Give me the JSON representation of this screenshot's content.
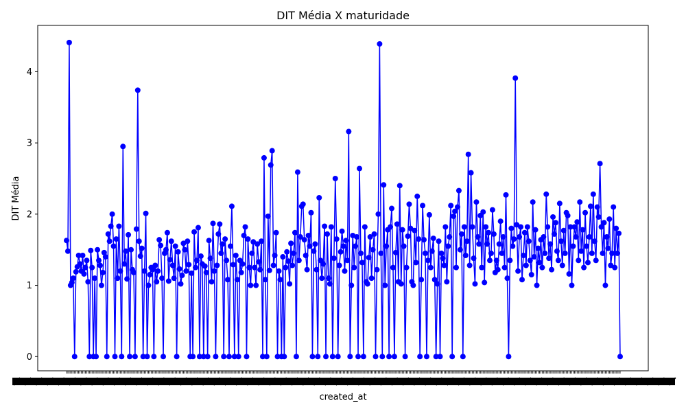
{
  "chart_data": {
    "type": "line",
    "title": "DIT Média X maturidade",
    "xlabel": "created_at",
    "ylabel": "DIT Média",
    "ylim": [
      -0.2,
      4.65
    ],
    "yticks": [
      0,
      1,
      2,
      3,
      4
    ],
    "grid": false,
    "legend": "none",
    "x_tick_labels_note": "",
    "series": [
      {
        "color": "#0000ff",
        "marker": "circle",
        "values": [
          1.63,
          1.48,
          4.41,
          1.0,
          1.04,
          1.1,
          0.0,
          1.19,
          1.26,
          1.42,
          1.3,
          1.2,
          1.42,
          1.16,
          1.25,
          1.35,
          1.05,
          0.0,
          1.49,
          1.25,
          0.0,
          1.1,
          0.0,
          1.5,
          1.35,
          1.28,
          1.0,
          1.18,
          1.46,
          1.4,
          0.0,
          1.72,
          1.62,
          1.83,
          2.0,
          1.55,
          0.0,
          1.65,
          1.1,
          1.83,
          1.2,
          0.0,
          2.95,
          1.3,
          1.48,
          1.09,
          1.71,
          0.0,
          1.5,
          1.22,
          1.18,
          0.0,
          1.79,
          3.74,
          1.62,
          1.41,
          1.52,
          0.0,
          1.2,
          2.01,
          0.0,
          1.0,
          1.15,
          1.25,
          1.22,
          0.0,
          1.28,
          1.05,
          1.2,
          1.64,
          1.56,
          1.1,
          0.0,
          1.45,
          1.5,
          1.74,
          1.06,
          1.36,
          1.62,
          1.28,
          1.1,
          1.55,
          0.0,
          1.47,
          1.23,
          1.02,
          1.14,
          1.59,
          1.5,
          1.2,
          1.62,
          1.29,
          0.0,
          1.17,
          0.0,
          1.75,
          1.25,
          1.35,
          1.81,
          0.0,
          1.41,
          1.3,
          0.0,
          1.27,
          1.18,
          0.0,
          1.63,
          1.38,
          1.05,
          1.87,
          1.2,
          0.0,
          1.28,
          1.72,
          1.86,
          1.45,
          1.58,
          0.0,
          1.65,
          1.35,
          1.08,
          0.0,
          1.55,
          2.11,
          1.29,
          0.0,
          1.42,
          1.08,
          0.0,
          1.35,
          1.18,
          1.3,
          1.7,
          1.82,
          0.0,
          1.65,
          1.25,
          1.0,
          1.45,
          1.61,
          1.25,
          1.0,
          1.58,
          1.33,
          1.22,
          1.62,
          0.0,
          2.79,
          1.08,
          0.0,
          1.97,
          1.21,
          2.69,
          2.89,
          1.28,
          1.42,
          1.74,
          0.0,
          1.2,
          1.08,
          0.0,
          1.4,
          0.0,
          1.25,
          1.47,
          1.34,
          1.02,
          1.59,
          1.28,
          1.45,
          1.74,
          0.0,
          2.59,
          1.35,
          1.68,
          2.11,
          2.14,
          1.64,
          1.42,
          1.22,
          1.7,
          1.55,
          2.02,
          0.0,
          1.48,
          1.58,
          1.22,
          0.0,
          2.23,
          1.35,
          1.1,
          1.3,
          1.83,
          0.0,
          1.72,
          1.1,
          1.02,
          1.82,
          0.0,
          1.38,
          2.5,
          1.65,
          0.0,
          1.28,
          1.47,
          1.76,
          1.55,
          1.2,
          1.63,
          1.35,
          3.16,
          0.0,
          1.0,
          1.7,
          1.25,
          1.55,
          1.68,
          0.0,
          2.64,
          1.45,
          1.32,
          0.0,
          1.82,
          1.05,
          1.02,
          1.39,
          1.68,
          1.1,
          1.5,
          1.72,
          0.0,
          1.22,
          2.0,
          4.39,
          1.45,
          0.0,
          2.41,
          1.0,
          1.55,
          1.78,
          0.0,
          1.82,
          2.08,
          1.25,
          0.0,
          1.46,
          1.86,
          1.05,
          2.4,
          1.02,
          1.78,
          1.55,
          0.0,
          1.25,
          1.69,
          2.14,
          1.8,
          1.05,
          1.0,
          1.77,
          1.32,
          2.25,
          1.65,
          0.0,
          1.08,
          2.12,
          1.64,
          1.45,
          0.0,
          1.35,
          1.99,
          1.25,
          1.48,
          1.66,
          1.08,
          0.0,
          1.02,
          1.62,
          0.0,
          1.45,
          1.38,
          1.28,
          1.82,
          1.05,
          1.55,
          1.68,
          2.12,
          0.0,
          1.97,
          2.04,
          1.25,
          2.1,
          2.33,
          1.5,
          1.72,
          0.0,
          1.82,
          1.42,
          1.62,
          2.84,
          1.28,
          2.58,
          1.82,
          1.38,
          1.02,
          2.17,
          1.68,
          1.58,
          1.98,
          1.25,
          2.03,
          1.04,
          1.82,
          1.58,
          1.74,
          1.35,
          1.45,
          2.06,
          1.72,
          1.18,
          1.35,
          1.22,
          1.58,
          1.9,
          1.45,
          1.68,
          1.25,
          2.27,
          1.1,
          0.0,
          1.35,
          1.8,
          1.55,
          1.65,
          3.91,
          1.85,
          1.2,
          1.68,
          1.82,
          1.08,
          1.42,
          1.74,
          1.28,
          1.82,
          1.62,
          1.35,
          1.15,
          2.17,
          1.4,
          1.78,
          1.0,
          1.52,
          1.32,
          1.64,
          1.25,
          1.68,
          1.45,
          2.28,
          1.82,
          1.38,
          1.58,
          1.22,
          1.96,
          1.72,
          1.88,
          1.48,
          1.35,
          2.15,
          1.62,
          1.28,
          1.77,
          1.45,
          2.02,
          1.98,
          1.16,
          1.82,
          1.0,
          1.55,
          1.82,
          1.68,
          1.89,
          1.35,
          2.17,
          1.48,
          1.78,
          1.25,
          2.02,
          1.55,
          1.32,
          1.68,
          2.11,
          1.45,
          2.28,
          1.62,
          1.35,
          2.1,
          1.96,
          2.71,
          1.82,
          1.45,
          1.88,
          1.0,
          1.68,
          1.52,
          1.93,
          1.28,
          1.45,
          2.1,
          1.25,
          1.8,
          1.45,
          1.73,
          0.0
        ]
      }
    ]
  }
}
